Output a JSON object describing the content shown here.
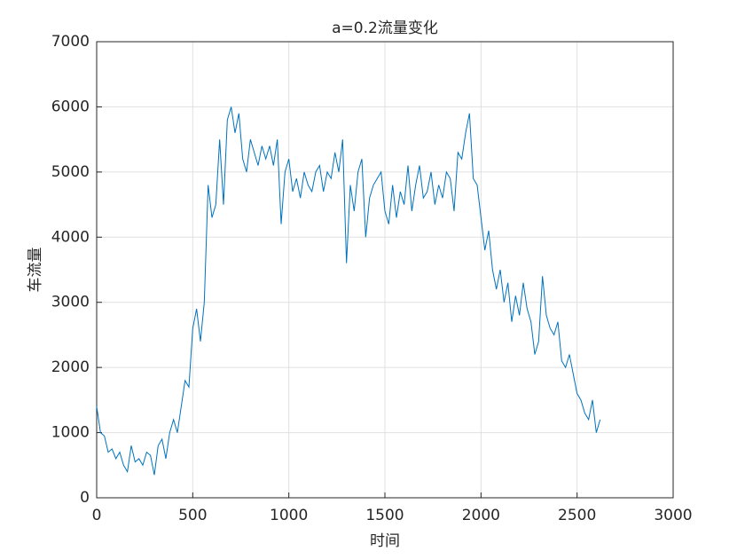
{
  "chart_data": {
    "type": "line",
    "title": "a=0.2流量变化",
    "xlabel": "时间",
    "ylabel": "车流量",
    "x": [
      0,
      20,
      40,
      60,
      80,
      100,
      120,
      140,
      160,
      180,
      200,
      220,
      240,
      260,
      280,
      300,
      320,
      340,
      360,
      380,
      400,
      420,
      440,
      460,
      480,
      500,
      520,
      540,
      560,
      580,
      600,
      620,
      640,
      660,
      680,
      700,
      720,
      740,
      760,
      780,
      800,
      820,
      840,
      860,
      880,
      900,
      920,
      940,
      960,
      980,
      1000,
      1020,
      1040,
      1060,
      1080,
      1100,
      1120,
      1140,
      1160,
      1180,
      1200,
      1220,
      1240,
      1260,
      1280,
      1300,
      1320,
      1340,
      1360,
      1380,
      1400,
      1420,
      1440,
      1460,
      1480,
      1500,
      1520,
      1540,
      1560,
      1580,
      1600,
      1620,
      1640,
      1660,
      1680,
      1700,
      1720,
      1740,
      1760,
      1780,
      1800,
      1820,
      1840,
      1860,
      1880,
      1900,
      1920,
      1940,
      1960,
      1980,
      2000,
      2020,
      2040,
      2060,
      2080,
      2100,
      2120,
      2140,
      2160,
      2180,
      2200,
      2220,
      2240,
      2260,
      2280,
      2300,
      2320,
      2340,
      2360,
      2380,
      2400,
      2420,
      2440,
      2460,
      2480,
      2500,
      2520,
      2540,
      2560,
      2580,
      2600,
      2620
    ],
    "series": [
      {
        "color": "#0072bd",
        "values": [
          1400,
          1000,
          950,
          700,
          750,
          600,
          700,
          500,
          400,
          800,
          550,
          600,
          500,
          700,
          650,
          350,
          800,
          900,
          600,
          1000,
          1200,
          1000,
          1400,
          1800,
          1700,
          2600,
          2900,
          2400,
          3000,
          4800,
          4300,
          4500,
          5500,
          4500,
          5800,
          6000,
          5600,
          5900,
          5200,
          5000,
          5500,
          5300,
          5100,
          5400,
          5200,
          5400,
          5100,
          5500,
          4200,
          5000,
          5200,
          4700,
          4900,
          4600,
          5000,
          4800,
          4700,
          5000,
          5100,
          4700,
          5000,
          4900,
          5300,
          5000,
          5500,
          3600,
          4800,
          4400,
          5000,
          5200,
          4000,
          4600,
          4800,
          4900,
          5000,
          4400,
          4200,
          4800,
          4300,
          4700,
          4500,
          5100,
          4400,
          4800,
          5100,
          4600,
          4700,
          5000,
          4500,
          4800,
          4600,
          5000,
          4900,
          4400,
          5300,
          5200,
          5600,
          5900,
          4900,
          4800,
          4300,
          3800,
          4100,
          3500,
          3200,
          3500,
          3000,
          3300,
          2700,
          3100,
          2800,
          3300,
          2900,
          2700,
          2200,
          2400,
          3400,
          2800,
          2600,
          2500,
          2700,
          2100,
          2000,
          2200,
          1900,
          1600,
          1500,
          1300,
          1200,
          1500,
          1000,
          1200
        ]
      }
    ],
    "xlim": [
      0,
      3000
    ],
    "xticks": [
      0,
      500,
      1000,
      1500,
      2000,
      2500,
      3000
    ],
    "ylim": [
      0,
      7000
    ],
    "yticks": [
      0,
      1000,
      2000,
      3000,
      4000,
      5000,
      6000,
      7000
    ],
    "grid": true
  }
}
